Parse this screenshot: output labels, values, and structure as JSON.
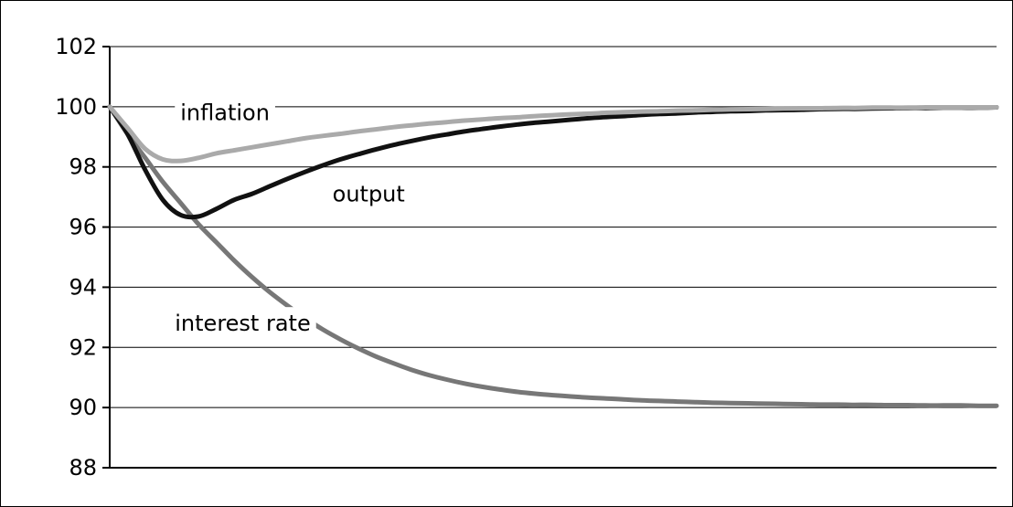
{
  "chart_data": {
    "type": "line",
    "title": "",
    "xlabel": "",
    "ylabel": "",
    "ylim": [
      88,
      102
    ],
    "yticks": [
      88,
      90,
      92,
      94,
      96,
      98,
      100,
      102
    ],
    "ytick_labels": [
      "88",
      "90",
      "92",
      "94",
      "96",
      "98",
      "100",
      "102"
    ],
    "grid": true,
    "x": [
      0,
      1,
      2,
      3,
      4,
      5,
      6,
      7,
      8,
      9,
      10,
      11,
      12,
      13,
      14,
      15,
      16,
      17,
      18,
      19,
      20,
      21,
      22,
      23,
      24,
      25,
      26,
      27,
      28,
      29,
      30,
      31,
      32,
      33,
      34,
      35,
      36,
      37,
      38,
      39,
      40,
      41,
      42,
      43,
      44,
      45,
      46,
      47,
      48,
      49,
      50
    ],
    "xlim": [
      0,
      50
    ],
    "colors": {
      "inflation": "#aaaaaa",
      "output": "#111111",
      "interest rate": "#777777",
      "grid": "#000000"
    },
    "series": [
      {
        "name": "inflation",
        "values": [
          100,
          99.3,
          98.6,
          98.25,
          98.2,
          98.3,
          98.45,
          98.55,
          98.65,
          98.75,
          98.85,
          98.95,
          99.03,
          99.1,
          99.18,
          99.25,
          99.32,
          99.38,
          99.44,
          99.49,
          99.54,
          99.58,
          99.62,
          99.65,
          99.69,
          99.72,
          99.75,
          99.77,
          99.8,
          99.82,
          99.84,
          99.85,
          99.87,
          99.88,
          99.9,
          99.91,
          99.92,
          99.93,
          99.94,
          99.95,
          99.95,
          99.96,
          99.96,
          99.97,
          99.97,
          99.97,
          99.98,
          99.98,
          99.98,
          99.98,
          99.98
        ]
      },
      {
        "name": "output",
        "values": [
          100,
          99.1,
          97.9,
          96.9,
          96.4,
          96.35,
          96.6,
          96.9,
          97.1,
          97.35,
          97.6,
          97.83,
          98.05,
          98.25,
          98.42,
          98.58,
          98.73,
          98.86,
          98.98,
          99.08,
          99.18,
          99.26,
          99.34,
          99.41,
          99.47,
          99.52,
          99.57,
          99.62,
          99.66,
          99.69,
          99.73,
          99.76,
          99.78,
          99.81,
          99.83,
          99.85,
          99.86,
          99.88,
          99.89,
          99.9,
          99.92,
          99.93,
          99.93,
          99.94,
          99.95,
          99.96,
          99.96,
          99.97,
          99.97,
          99.97,
          99.98
        ]
      },
      {
        "name": "interest rate",
        "values": [
          100,
          99.1,
          98.3,
          97.5,
          96.8,
          96.1,
          95.5,
          94.9,
          94.35,
          93.85,
          93.4,
          92.98,
          92.6,
          92.27,
          91.97,
          91.7,
          91.47,
          91.26,
          91.08,
          90.93,
          90.8,
          90.69,
          90.6,
          90.52,
          90.46,
          90.41,
          90.37,
          90.33,
          90.3,
          90.27,
          90.24,
          90.22,
          90.2,
          90.18,
          90.16,
          90.15,
          90.14,
          90.13,
          90.12,
          90.11,
          90.1,
          90.1,
          90.09,
          90.09,
          90.08,
          90.08,
          90.07,
          90.07,
          90.07,
          90.06,
          90.06
        ]
      }
    ],
    "annotations": [
      {
        "text": "inflation",
        "x": 6.5,
        "y": 99.55
      },
      {
        "text": "output",
        "x": 14.6,
        "y": 96.85
      },
      {
        "text": "interest rate",
        "x": 7.5,
        "y": 92.55
      }
    ]
  }
}
